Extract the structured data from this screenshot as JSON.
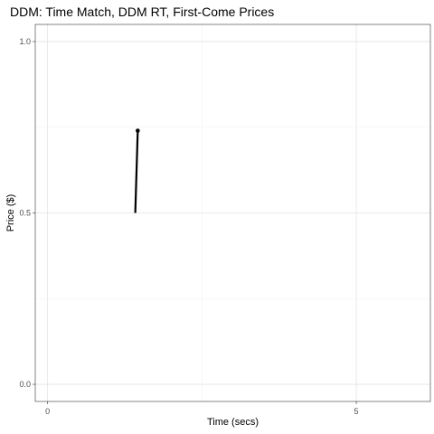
{
  "chart_data": {
    "type": "line",
    "title": "DDM: Time Match, DDM RT, First-Come Prices",
    "xlabel": "Time (secs)",
    "ylabel": "Price ($)",
    "xlim": [
      -0.2,
      6.2
    ],
    "ylim": [
      -0.05,
      1.05
    ],
    "x_ticks": [
      0,
      5
    ],
    "x_tick_labels": [
      "0",
      "5"
    ],
    "x_minor_ticks": [
      2.5
    ],
    "y_ticks": [
      0.0,
      0.5,
      1.0
    ],
    "y_tick_labels": [
      "0.0",
      "0.5",
      "1.0"
    ],
    "y_minor_ticks": [
      0.25,
      0.75
    ],
    "grid": true,
    "series": [
      {
        "color": "#000000",
        "points": [
          {
            "x": 1.42,
            "y": 0.5
          },
          {
            "x": 1.46,
            "y": 0.74
          }
        ],
        "end_marker": true
      }
    ]
  }
}
